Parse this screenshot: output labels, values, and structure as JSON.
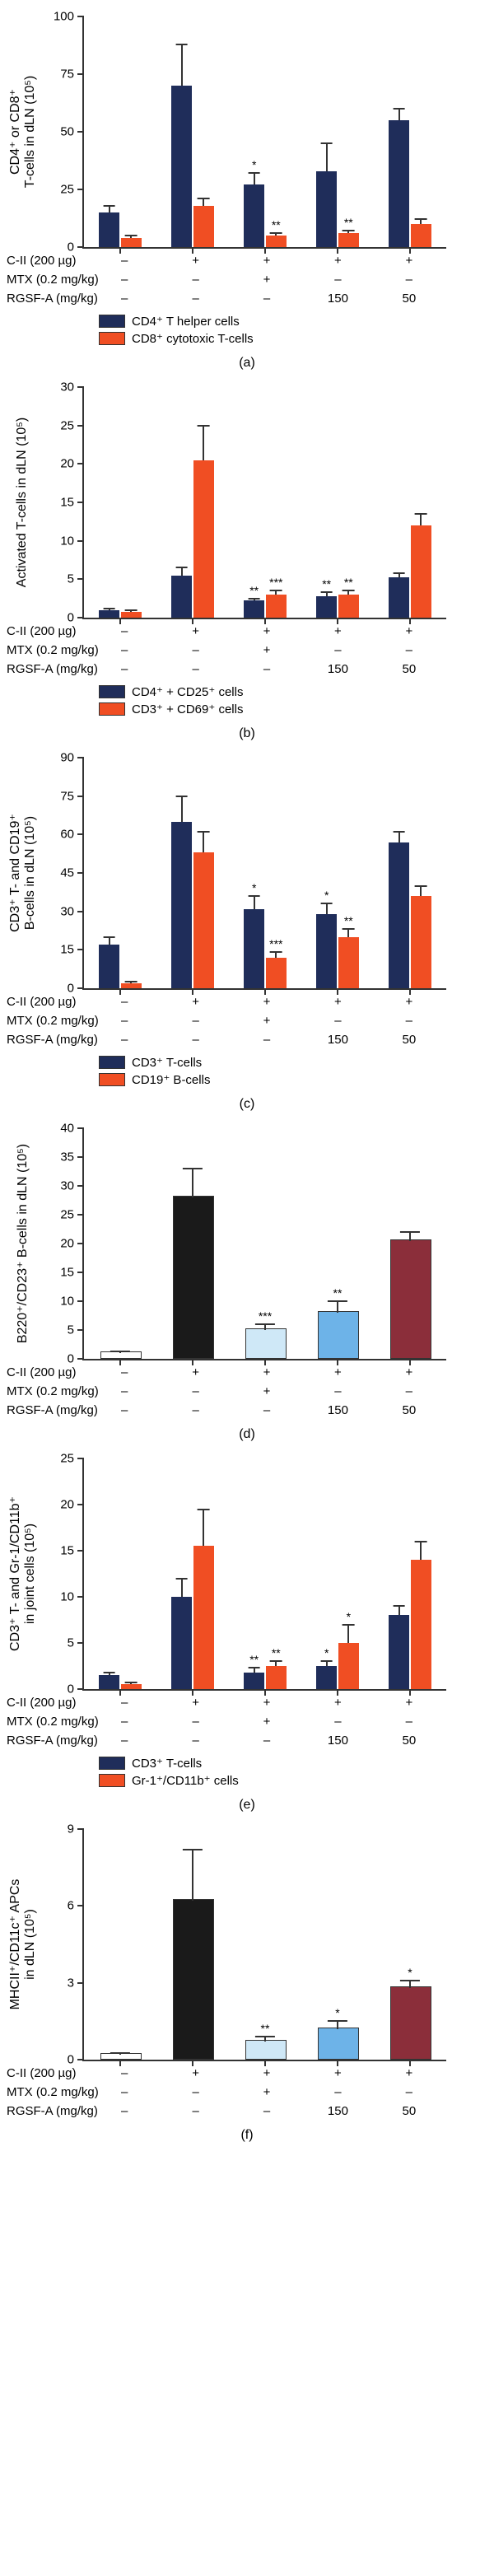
{
  "colors": {
    "navy": "#1f2d5a",
    "orange": "#f04e23",
    "white": "#ffffff",
    "lightblue": "#cfe8f7",
    "midblue": "#6db3e8",
    "maroon": "#8b2e3a",
    "black": "#1a1a1a",
    "axis": "#333333"
  },
  "x_treatments": {
    "rows": [
      {
        "label": "C-II (200 µg)",
        "vals": [
          "–",
          "+",
          "+",
          "+",
          "+"
        ]
      },
      {
        "label": "MTX (0.2 mg/kg)",
        "vals": [
          "–",
          "–",
          "+",
          "–",
          "–"
        ]
      },
      {
        "label": "RGSF-A (mg/kg)",
        "vals": [
          "–",
          "–",
          "–",
          "150",
          "50"
        ]
      }
    ]
  },
  "panels": [
    {
      "id": "a",
      "caption": "(a)",
      "type": "paired",
      "y_label": "CD4⁺ or CD8⁺\nT-cells in dLN (10⁵)",
      "ylim": [
        0,
        100
      ],
      "ytick_step": 25,
      "series_colors": [
        "navy",
        "orange"
      ],
      "legend": [
        "CD4⁺ T helper cells",
        "CD8⁺ cytotoxic T-cells"
      ],
      "groups": [
        {
          "vals": [
            15,
            4
          ],
          "errs": [
            3,
            1
          ],
          "sigs": [
            "",
            ""
          ]
        },
        {
          "vals": [
            70,
            18
          ],
          "errs": [
            18,
            3
          ],
          "sigs": [
            "",
            ""
          ]
        },
        {
          "vals": [
            27,
            5
          ],
          "errs": [
            5,
            1
          ],
          "sigs": [
            "*",
            "**"
          ]
        },
        {
          "vals": [
            33,
            6
          ],
          "errs": [
            12,
            1
          ],
          "sigs": [
            "",
            "**"
          ]
        },
        {
          "vals": [
            55,
            10
          ],
          "errs": [
            5,
            2
          ],
          "sigs": [
            "",
            ""
          ]
        }
      ]
    },
    {
      "id": "b",
      "caption": "(b)",
      "type": "paired",
      "y_label": "Activated T-cells in dLN (10⁵)",
      "ylim": [
        0,
        30
      ],
      "ytick_step": 5,
      "series_colors": [
        "navy",
        "orange"
      ],
      "legend": [
        "CD4⁺ + CD25⁺ cells",
        "CD3⁺ + CD69⁺ cells"
      ],
      "groups": [
        {
          "vals": [
            1.0,
            0.8
          ],
          "errs": [
            0.2,
            0.2
          ],
          "sigs": [
            "",
            ""
          ]
        },
        {
          "vals": [
            5.5,
            20.5
          ],
          "errs": [
            1.0,
            4.5
          ],
          "sigs": [
            "",
            ""
          ]
        },
        {
          "vals": [
            2.2,
            3.0
          ],
          "errs": [
            0.3,
            0.5
          ],
          "sigs": [
            "**",
            "***"
          ]
        },
        {
          "vals": [
            2.8,
            3.0
          ],
          "errs": [
            0.5,
            0.5
          ],
          "sigs": [
            "**",
            "**"
          ]
        },
        {
          "vals": [
            5.3,
            12.0
          ],
          "errs": [
            0.5,
            1.5
          ],
          "sigs": [
            "",
            ""
          ]
        }
      ]
    },
    {
      "id": "c",
      "caption": "(c)",
      "type": "paired",
      "y_label": "CD3⁺ T- and CD19⁺\nB-cells in dLN (10⁵)",
      "ylim": [
        0,
        90
      ],
      "ytick_step": 15,
      "series_colors": [
        "navy",
        "orange"
      ],
      "legend": [
        "CD3⁺ T-cells",
        "CD19⁺ B-cells"
      ],
      "groups": [
        {
          "vals": [
            17,
            2
          ],
          "errs": [
            3,
            0.5
          ],
          "sigs": [
            "",
            ""
          ]
        },
        {
          "vals": [
            65,
            53
          ],
          "errs": [
            10,
            8
          ],
          "sigs": [
            "",
            ""
          ]
        },
        {
          "vals": [
            31,
            12
          ],
          "errs": [
            5,
            2
          ],
          "sigs": [
            "*",
            "***"
          ]
        },
        {
          "vals": [
            29,
            20
          ],
          "errs": [
            4,
            3
          ],
          "sigs": [
            "*",
            "**"
          ]
        },
        {
          "vals": [
            57,
            36
          ],
          "errs": [
            4,
            4
          ],
          "sigs": [
            "",
            ""
          ]
        }
      ]
    },
    {
      "id": "d",
      "caption": "(d)",
      "type": "single",
      "y_label": "B220⁺/CD23⁺ B-cells in dLN (10⁵)",
      "ylim": [
        0,
        40
      ],
      "ytick_step": 5,
      "bar_colors": [
        "white",
        "black",
        "lightblue",
        "midblue",
        "maroon"
      ],
      "groups": [
        {
          "val": 1.0,
          "err": 0.3,
          "sig": ""
        },
        {
          "val": 28,
          "err": 5,
          "sig": ""
        },
        {
          "val": 5,
          "err": 1,
          "sig": "***"
        },
        {
          "val": 8,
          "err": 2,
          "sig": "**"
        },
        {
          "val": 20.5,
          "err": 1.5,
          "sig": ""
        }
      ]
    },
    {
      "id": "e",
      "caption": "(e)",
      "type": "paired",
      "y_label": "CD3⁺ T- and Gr-1/CD11b⁺\nin joint cells (10⁵)",
      "ylim": [
        0,
        25
      ],
      "ytick_step": 5,
      "series_colors": [
        "navy",
        "orange"
      ],
      "legend": [
        "CD3⁺ T-cells",
        "Gr-1⁺/CD11b⁺ cells"
      ],
      "groups": [
        {
          "vals": [
            1.5,
            0.5
          ],
          "errs": [
            0.3,
            0.2
          ],
          "sigs": [
            "",
            ""
          ]
        },
        {
          "vals": [
            10,
            15.5
          ],
          "errs": [
            2,
            4
          ],
          "sigs": [
            "",
            ""
          ]
        },
        {
          "vals": [
            1.8,
            2.5
          ],
          "errs": [
            0.5,
            0.5
          ],
          "sigs": [
            "**",
            "**"
          ]
        },
        {
          "vals": [
            2.5,
            5
          ],
          "errs": [
            0.5,
            2
          ],
          "sigs": [
            "*",
            "*"
          ]
        },
        {
          "vals": [
            8,
            14
          ],
          "errs": [
            1,
            2
          ],
          "sigs": [
            "",
            ""
          ]
        }
      ]
    },
    {
      "id": "f",
      "caption": "(f)",
      "type": "single",
      "y_label": "MHCII⁺/CD11c⁺ APCs\nin dLN (10⁵)",
      "ylim": [
        0,
        9
      ],
      "ytick_step": 3,
      "bar_colors": [
        "white",
        "black",
        "lightblue",
        "midblue",
        "maroon"
      ],
      "groups": [
        {
          "val": 0.2,
          "err": 0.05,
          "sig": ""
        },
        {
          "val": 6.2,
          "err": 2.0,
          "sig": ""
        },
        {
          "val": 0.7,
          "err": 0.2,
          "sig": "**"
        },
        {
          "val": 1.2,
          "err": 0.3,
          "sig": "*"
        },
        {
          "val": 2.8,
          "err": 0.3,
          "sig": "*"
        }
      ]
    }
  ]
}
